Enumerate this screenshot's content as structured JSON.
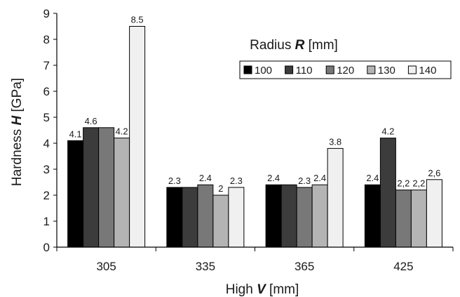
{
  "chart_data": {
    "type": "bar",
    "xlabel_plain": "High ",
    "xlabel_symbol": "V",
    "xlabel_unit": " [mm]",
    "ylabel_plain": "Hardness ",
    "ylabel_symbol": "H",
    "ylabel_unit": " [GPa]",
    "legend_title_plain": "Radius ",
    "legend_title_symbol": "R",
    "legend_title_unit": " [mm]",
    "legend_placement": "top-right",
    "ylim": [
      0,
      9
    ],
    "yticks": [
      "0",
      "1",
      "2",
      "3",
      "4",
      "5",
      "6",
      "7",
      "8",
      "9"
    ],
    "categories": [
      "305",
      "335",
      "365",
      "425"
    ],
    "grid": false,
    "series": [
      {
        "name": "100",
        "color": "#000000",
        "values": [
          4.1,
          2.3,
          2.4,
          2.4
        ],
        "labels": [
          "4.1",
          "2.3",
          "2.4",
          "2.4"
        ]
      },
      {
        "name": "110",
        "color": "#3c3c3c",
        "values": [
          4.6,
          2.3,
          2.4,
          4.2
        ],
        "labels": [
          "4.6",
          "",
          "",
          "4.2"
        ]
      },
      {
        "name": "120",
        "color": "#787878",
        "values": [
          4.6,
          2.4,
          2.3,
          2.2
        ],
        "labels": [
          "",
          "2.4",
          "2.3",
          "2,2"
        ]
      },
      {
        "name": "130",
        "color": "#b4b4b4",
        "values": [
          4.2,
          2.0,
          2.4,
          2.2
        ],
        "labels": [
          "4.2",
          "2",
          "2.4",
          "2,2"
        ]
      },
      {
        "name": "140",
        "color": "#f0f0f0",
        "values": [
          8.5,
          2.3,
          3.8,
          2.6
        ],
        "labels": [
          "8.5",
          "2.3",
          "3.8",
          "2,6"
        ]
      }
    ]
  }
}
